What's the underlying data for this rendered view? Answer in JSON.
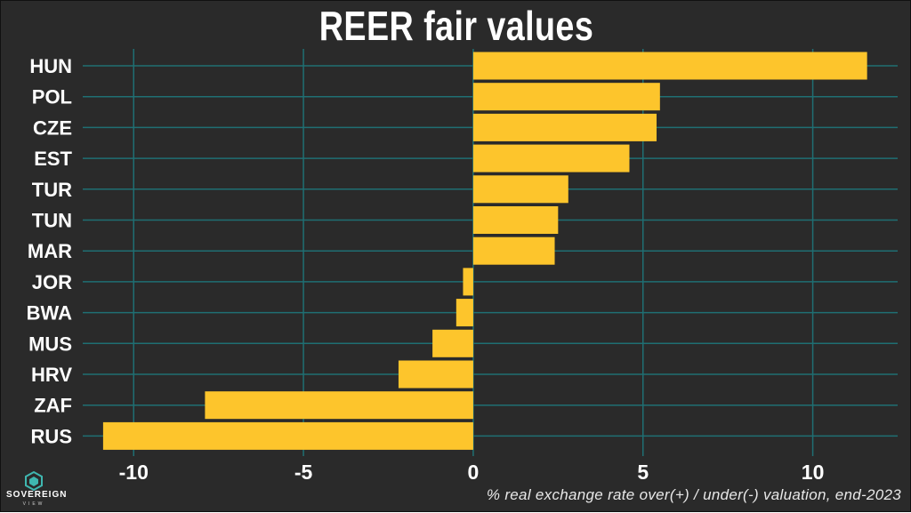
{
  "chart_data": {
    "type": "bar",
    "orientation": "horizontal",
    "title": "REER fair values",
    "xlabel": "% real exchange rate over(+) / under(-) valuation, end-2023",
    "categories": [
      "HUN",
      "POL",
      "CZE",
      "EST",
      "TUR",
      "TUN",
      "MAR",
      "JOR",
      "BWA",
      "MUS",
      "HRV",
      "ZAF",
      "RUS"
    ],
    "values": [
      11.6,
      5.5,
      5.4,
      4.6,
      2.8,
      2.5,
      2.4,
      -0.3,
      -0.5,
      -1.2,
      -2.2,
      -7.9,
      -10.9
    ],
    "xlim": [
      -11.5,
      12.5
    ],
    "xticks": [
      -10,
      -5,
      0,
      5,
      10
    ],
    "xtick_labels": [
      "-10",
      "-5",
      "0",
      "5",
      "10"
    ],
    "grid": true,
    "colors": {
      "background": "#2a2a2a",
      "bar": "#fdc52c",
      "grid": "#1f6f73",
      "text": "#ffffff"
    }
  },
  "branding": {
    "name": "SOVEREIGN",
    "sub": "VIEW",
    "icon": "sovereign-view-logo-icon"
  }
}
